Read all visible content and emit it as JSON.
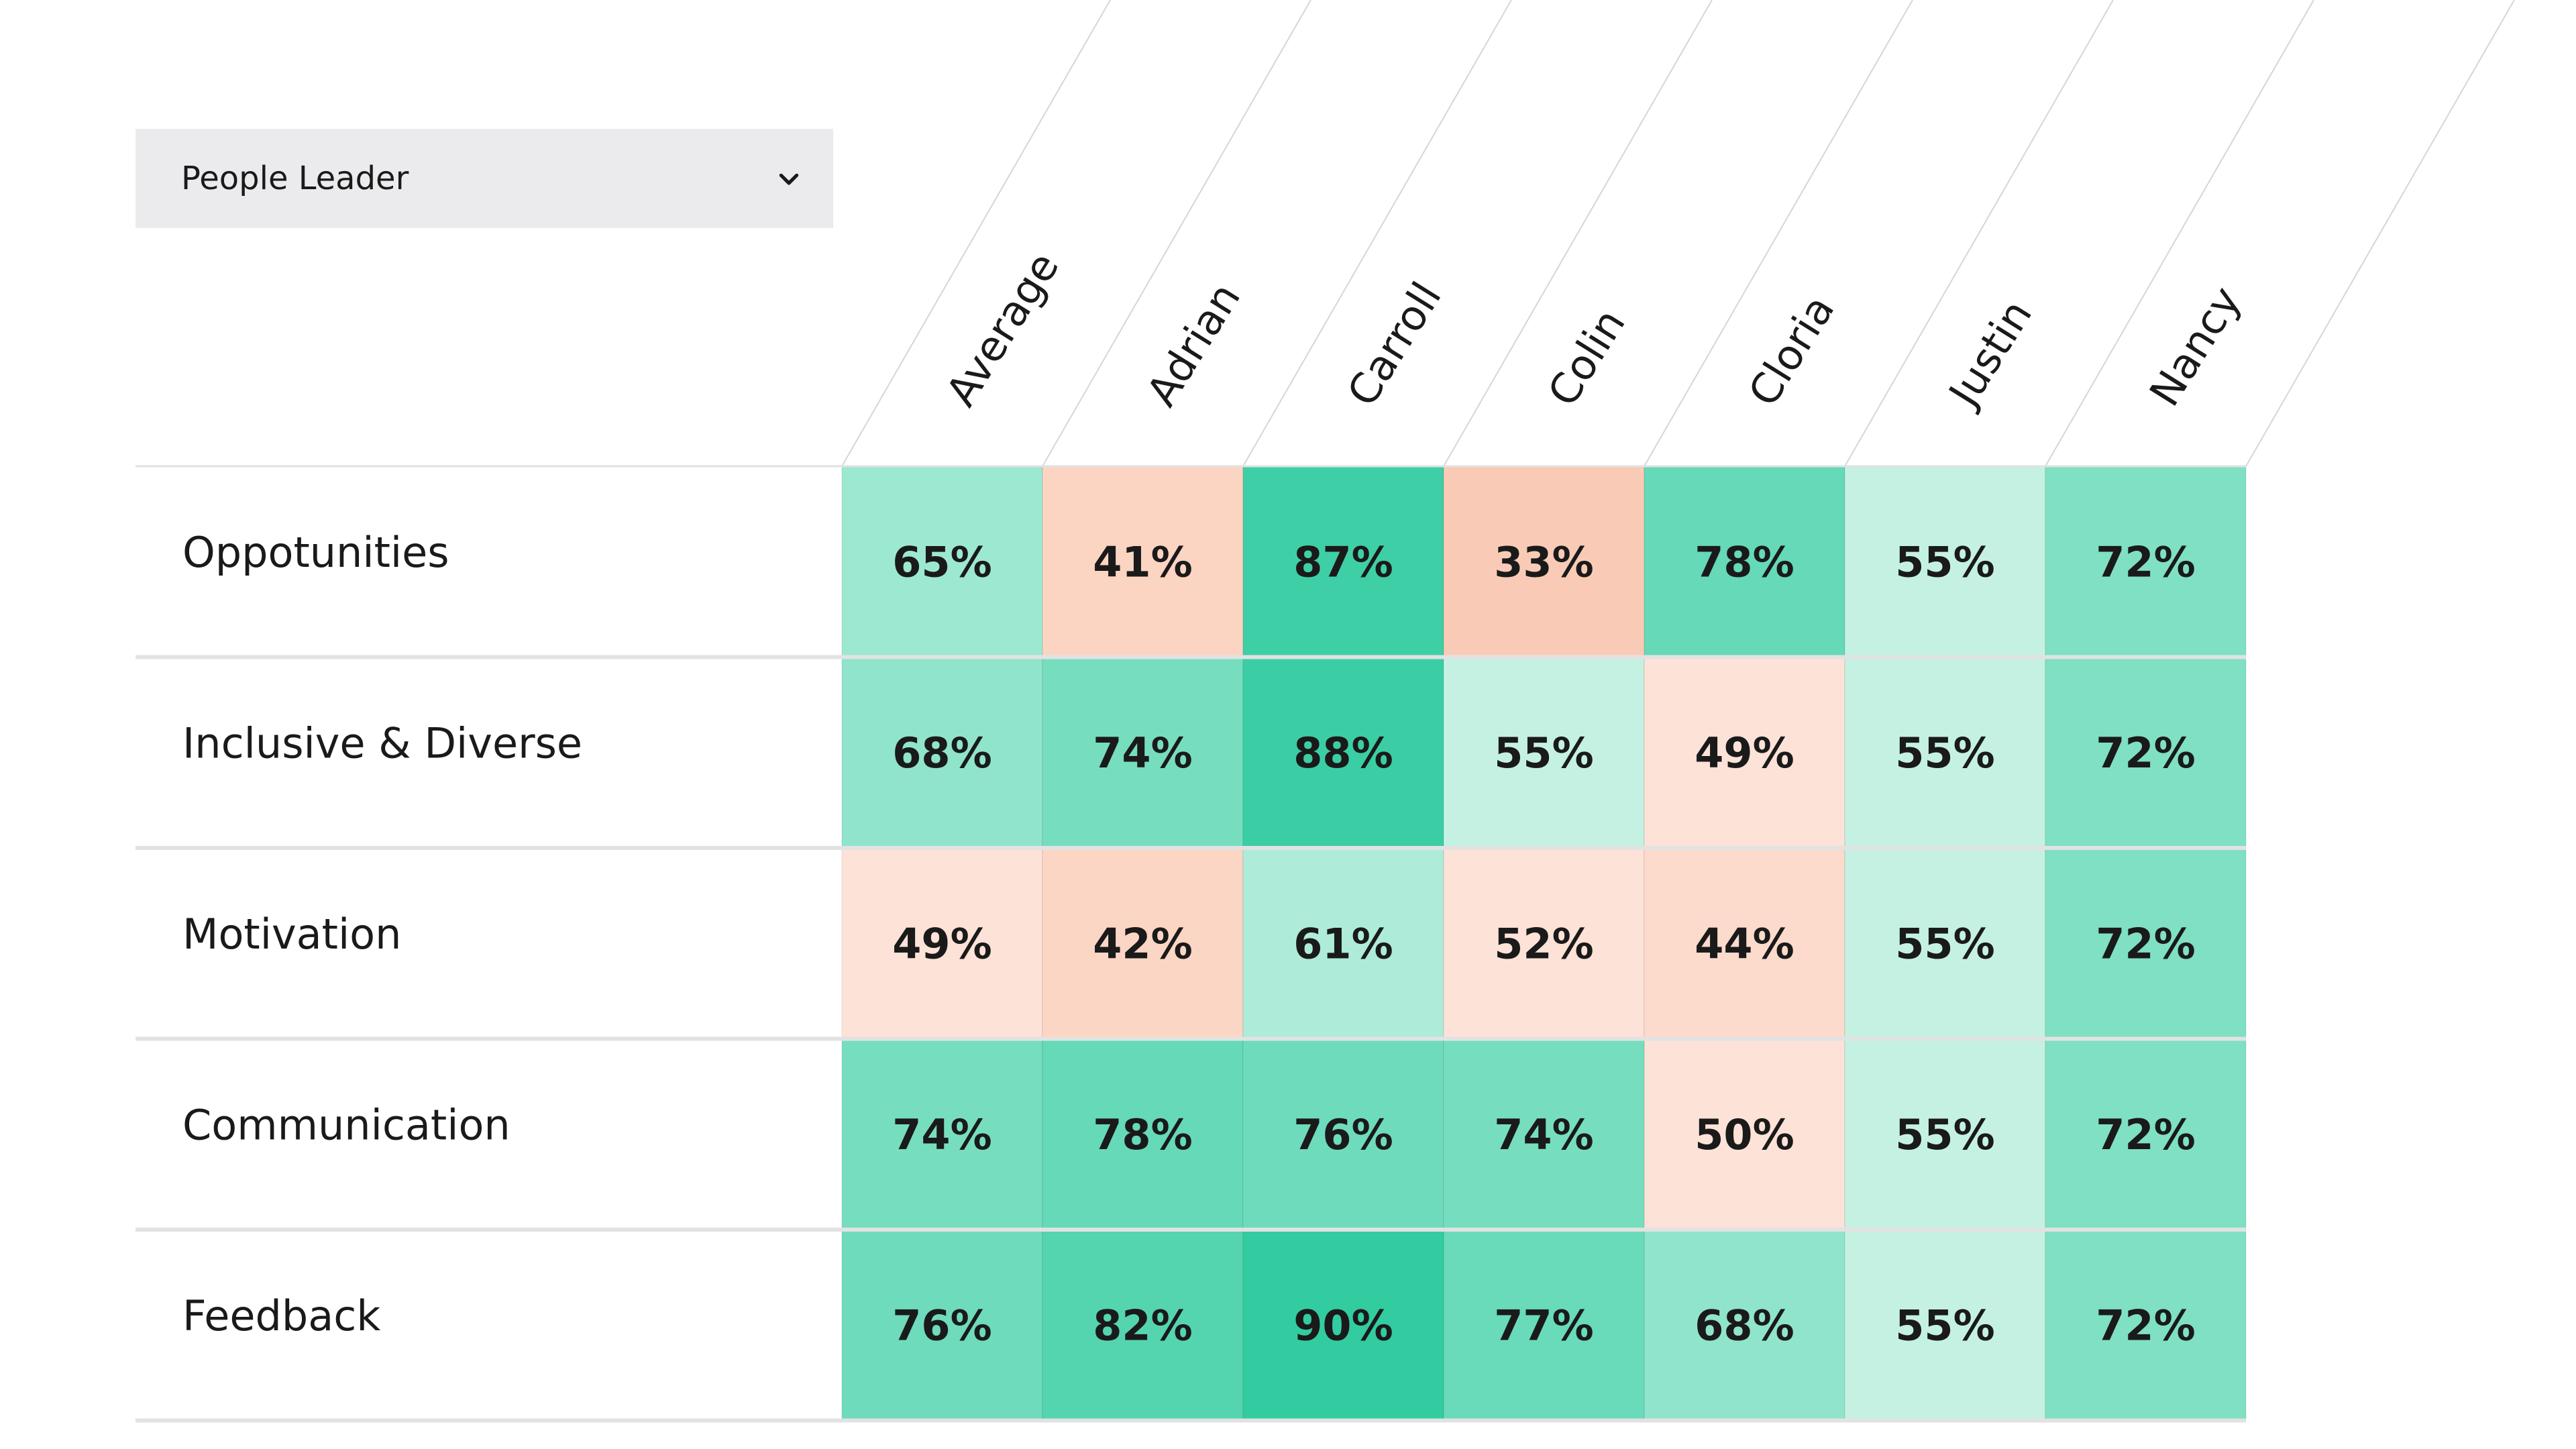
{
  "filter": {
    "selected": "People Leader",
    "icon": "chevron-down-icon"
  },
  "chart_data": {
    "type": "heatmap",
    "columns": [
      "Average",
      "Adrian",
      "Carroll",
      "Colin",
      "Cloria",
      "Justin",
      "Nancy"
    ],
    "rows": [
      "Oppotunities",
      "Inclusive & Diverse",
      "Motivation",
      "Communication",
      "Feedback"
    ],
    "values": [
      [
        65,
        41,
        87,
        33,
        78,
        55,
        72
      ],
      [
        68,
        74,
        88,
        55,
        49,
        55,
        72
      ],
      [
        49,
        42,
        61,
        52,
        44,
        55,
        72
      ],
      [
        74,
        78,
        76,
        74,
        50,
        55,
        72
      ],
      [
        76,
        82,
        90,
        77,
        68,
        55,
        72
      ]
    ],
    "value_suffix": "%",
    "color_scale": {
      "low": "#fbd2bf",
      "mid": "#c3f0e1",
      "high": "#32cca0"
    }
  }
}
